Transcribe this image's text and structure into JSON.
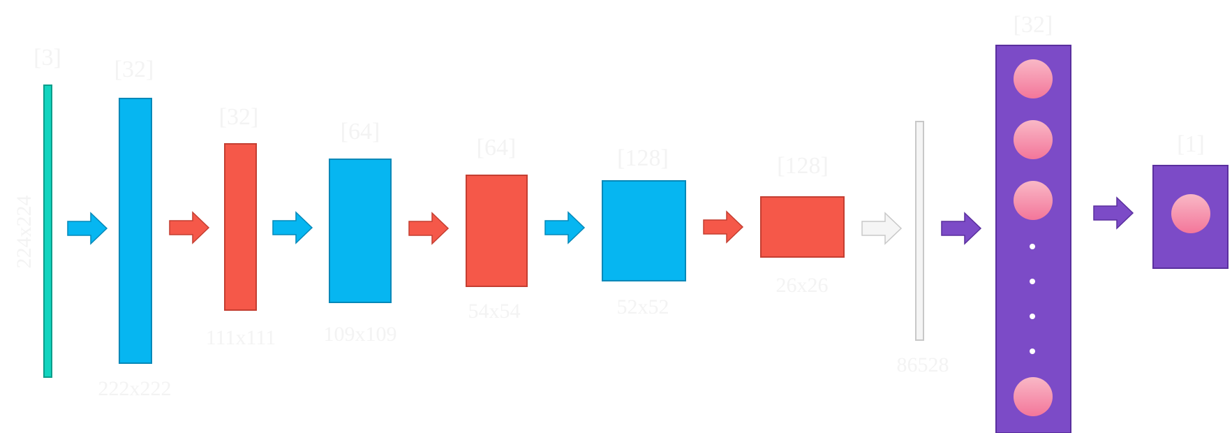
{
  "layers": [
    {
      "id": "input",
      "channels": "[3]",
      "size": "224x224",
      "color": "#12d4bf",
      "border": "#0a9d8a"
    },
    {
      "id": "conv1",
      "channels": "[32]",
      "size": "222x222",
      "color": "#06b6f1",
      "border": "#0588b8"
    },
    {
      "id": "pool1",
      "channels": "[32]",
      "size": "111x111",
      "color": "#f55849",
      "border": "#c43e31"
    },
    {
      "id": "conv2",
      "channels": "[64]",
      "size": "109x109",
      "color": "#06b6f1",
      "border": "#0588b8"
    },
    {
      "id": "pool2",
      "channels": "[64]",
      "size": "54x54",
      "color": "#f55849",
      "border": "#c43e31"
    },
    {
      "id": "conv3",
      "channels": "[128]",
      "size": "52x52",
      "color": "#06b6f1",
      "border": "#0588b8"
    },
    {
      "id": "pool3",
      "channels": "[128]",
      "size": "26x26",
      "color": "#f55849",
      "border": "#c43e31"
    },
    {
      "id": "flatten",
      "channels": "",
      "size": "86528",
      "color": "#f5f5f5",
      "border": "#c8c8c8"
    },
    {
      "id": "dense",
      "channels": "[32]",
      "size": "",
      "color": "#7c4bc7",
      "border": "#5a2f9e"
    },
    {
      "id": "output",
      "channels": "[1]",
      "size": "",
      "color": "#7c4bc7",
      "border": "#5a2f9e"
    }
  ],
  "arrows": [
    {
      "color": "#06b6f1",
      "border": "#0588b8"
    },
    {
      "color": "#f55849",
      "border": "#c43e31"
    },
    {
      "color": "#06b6f1",
      "border": "#0588b8"
    },
    {
      "color": "#f55849",
      "border": "#c43e31"
    },
    {
      "color": "#06b6f1",
      "border": "#0588b8"
    },
    {
      "color": "#f55849",
      "border": "#c43e31"
    },
    {
      "color": "#f5f5f5",
      "border": "#c8c8c8"
    },
    {
      "color": "#7c4bc7",
      "border": "#5a2f9e"
    },
    {
      "color": "#7c4bc7",
      "border": "#5a2f9e"
    }
  ],
  "neuron_color": "#f58aa5",
  "neuron_highlight": "#f9b0c2",
  "dot_color": "#ffffff"
}
